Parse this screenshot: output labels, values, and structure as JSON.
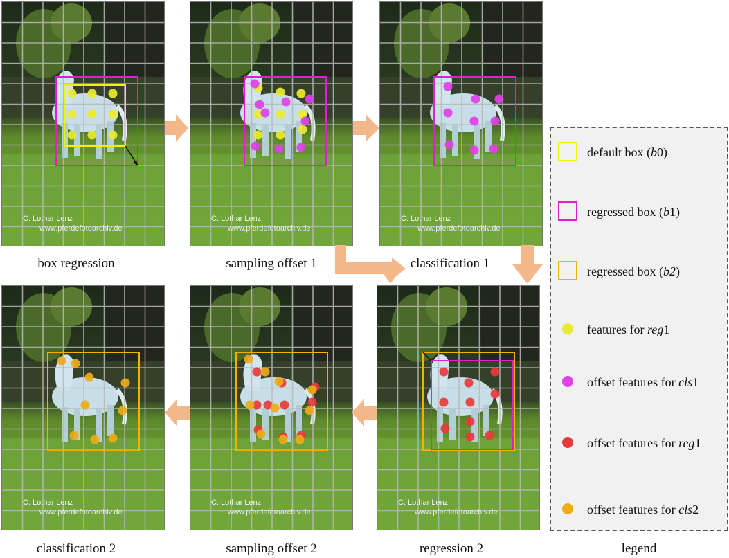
{
  "watermark": {
    "line1": "C:  Lothar Lenz",
    "line2": "www.pferdefotoarchiv.de"
  },
  "panels": [
    {
      "key": "p1",
      "caption": "box regression"
    },
    {
      "key": "p2",
      "caption": "sampling offset 1"
    },
    {
      "key": "p3",
      "caption": "classification 1"
    },
    {
      "key": "p4",
      "caption": "classification 2"
    },
    {
      "key": "p5",
      "caption": "sampling offset 2"
    },
    {
      "key": "p6",
      "caption": "regression 2"
    }
  ],
  "legend": {
    "caption": "legend",
    "items": [
      {
        "kind": "box",
        "color": "#f4f000",
        "text": "default box (",
        "italic": "b",
        "after": "0)"
      },
      {
        "kind": "box",
        "color": "#e020d0",
        "text": "regressed box (",
        "italic": "b",
        "after": "1)"
      },
      {
        "kind": "box",
        "color": "#f0b400",
        "text": "regressed box (",
        "italic": "b2",
        "after": ")"
      },
      {
        "kind": "dot",
        "color": "#eaea30",
        "text": "features for ",
        "italic": "reg",
        "after": "1"
      },
      {
        "kind": "dot",
        "color": "#e040e8",
        "text": "offset features for ",
        "italic": "cls",
        "after": "1"
      },
      {
        "kind": "dot",
        "color": "#e83a3a",
        "text": "offset features for ",
        "italic": "reg",
        "after": "1"
      },
      {
        "kind": "dot",
        "color": "#eeaa18",
        "text": "offset features for ",
        "italic": "cls",
        "after": "2"
      }
    ]
  },
  "colors": {
    "yellow": "#f4f000",
    "magenta": "#e020d0",
    "orange": "#f0b400",
    "dot_yellow": "#eaea30",
    "dot_magenta": "#e040e8",
    "dot_red": "#e83a3a",
    "dot_orange": "#eeaa18",
    "arrow": "#f2b88a"
  }
}
